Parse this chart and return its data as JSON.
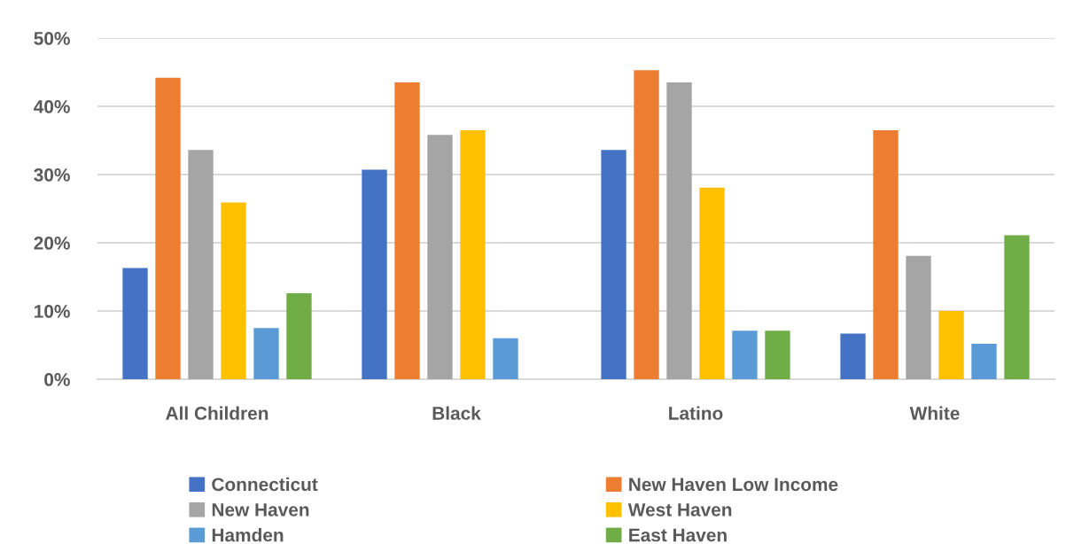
{
  "chart_data": {
    "type": "bar",
    "categories": [
      "All Children",
      "Black",
      "Latino",
      "White"
    ],
    "series": [
      {
        "name": "Connecticut",
        "color": "#4472c4",
        "values": [
          16.3,
          30.7,
          33.6,
          6.7
        ]
      },
      {
        "name": "New Haven Low Income",
        "color": "#ed7d31",
        "values": [
          44.2,
          43.5,
          45.3,
          36.5
        ]
      },
      {
        "name": "New Haven",
        "color": "#a5a5a5",
        "values": [
          33.6,
          35.8,
          43.5,
          18.1
        ]
      },
      {
        "name": "West Haven",
        "color": "#ffc000",
        "values": [
          25.9,
          36.5,
          28.1,
          10.0
        ]
      },
      {
        "name": "Hamden",
        "color": "#5b9bd5",
        "values": [
          7.5,
          6.0,
          7.1,
          5.2
        ]
      },
      {
        "name": "East Haven",
        "color": "#70ad47",
        "values": [
          12.6,
          null,
          7.1,
          21.1
        ]
      }
    ],
    "ylim": [
      0,
      50
    ],
    "yticks": [
      {
        "value": 0,
        "label": "0%"
      },
      {
        "value": 10,
        "label": "10%"
      },
      {
        "value": 20,
        "label": "20%"
      },
      {
        "value": 30,
        "label": "30%"
      },
      {
        "value": 40,
        "label": "40%"
      },
      {
        "value": 50,
        "label": "50%"
      }
    ],
    "grid": "y",
    "legend": "bottom"
  }
}
